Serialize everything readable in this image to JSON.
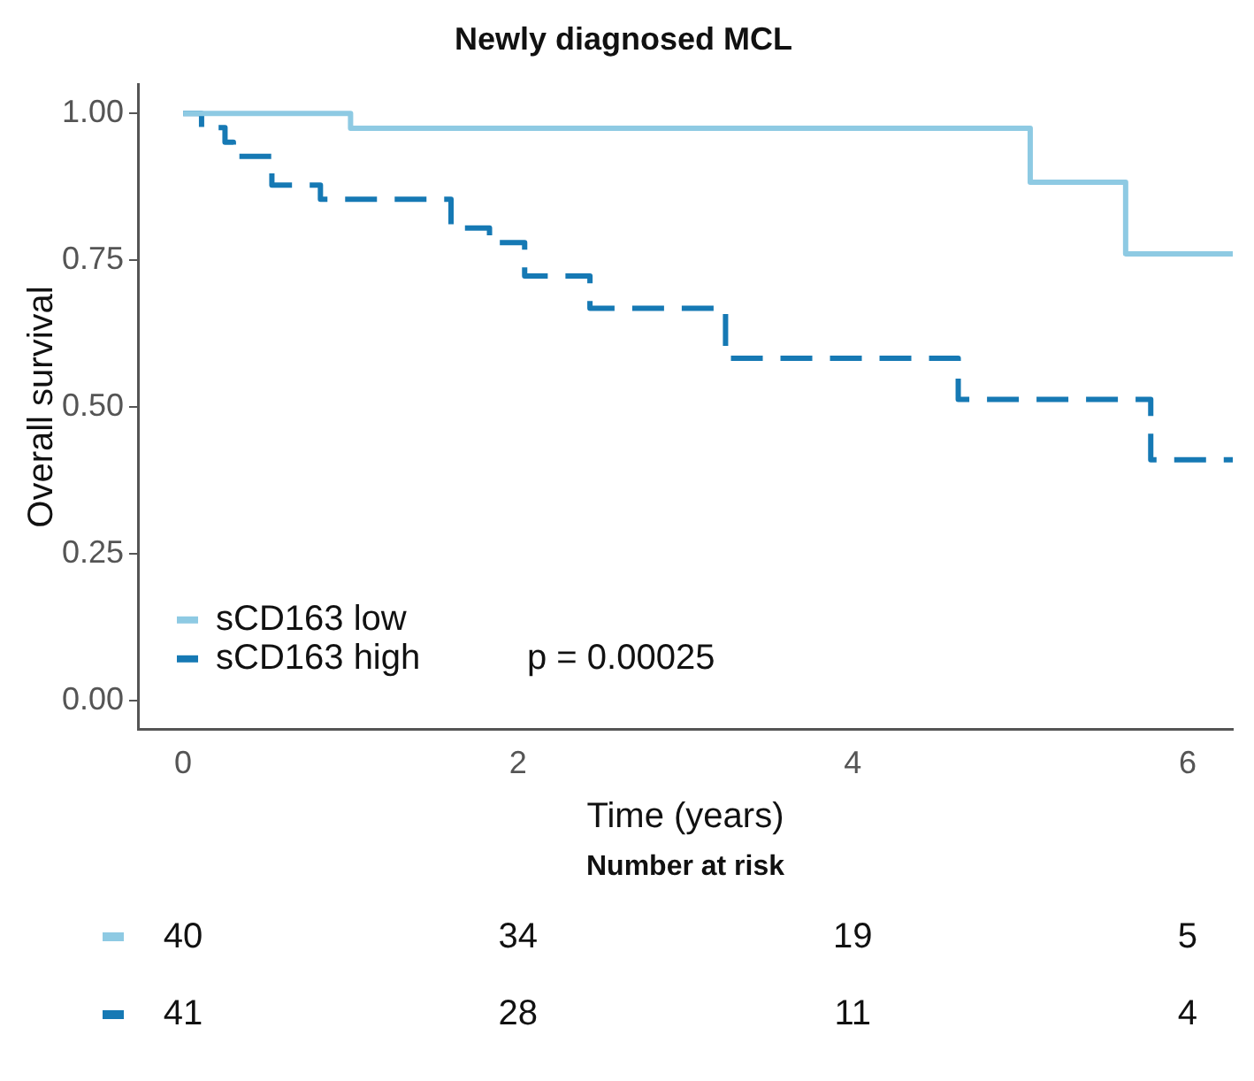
{
  "chart_data": [
    {
      "type": "step",
      "title": "Newly diagnosed MCL",
      "xlabel": "Time (years)",
      "ylabel": "Overall survival",
      "xlim": [
        -0.27,
        6.27
      ],
      "xticks": [
        0,
        2,
        4,
        6
      ],
      "ylim": [
        -0.05,
        1.05
      ],
      "yticks": [
        {
          "value": 0,
          "label": "0.00"
        },
        {
          "value": 0.25,
          "label": "0.25"
        },
        {
          "value": 0.5,
          "label": "0.50"
        },
        {
          "value": 0.75,
          "label": "0.75"
        },
        {
          "value": 1,
          "label": "1.00"
        }
      ],
      "grid": false,
      "legend": "bottom left",
      "annotations": [
        "p = 0.00025"
      ],
      "series": [
        {
          "name": "sCD163 low",
          "color": "#8ecae3",
          "line_style": "solid",
          "x": [
            0,
            1.0,
            5.06,
            5.63,
            6.27
          ],
          "values": [
            1,
            0.975,
            0.883,
            0.761,
            0.761
          ]
        },
        {
          "name": "sCD163 high",
          "color": "#1679b4",
          "line_style": "dashed",
          "x": [
            0,
            0.11,
            0.25,
            0.3,
            0.53,
            0.82,
            1.6,
            1.83,
            2.04,
            2.43,
            3.24,
            4.63,
            5.78,
            6.27
          ],
          "values": [
            1,
            0.976,
            0.951,
            0.927,
            0.878,
            0.854,
            0.805,
            0.78,
            0.723,
            0.668,
            0.583,
            0.513,
            0.41,
            0.41
          ]
        }
      ]
    },
    {
      "type": "other",
      "title": "Number at risk",
      "annotations": [
        "40",
        "34",
        "19",
        "5",
        "41",
        "28",
        "11",
        "4"
      ]
    }
  ]
}
